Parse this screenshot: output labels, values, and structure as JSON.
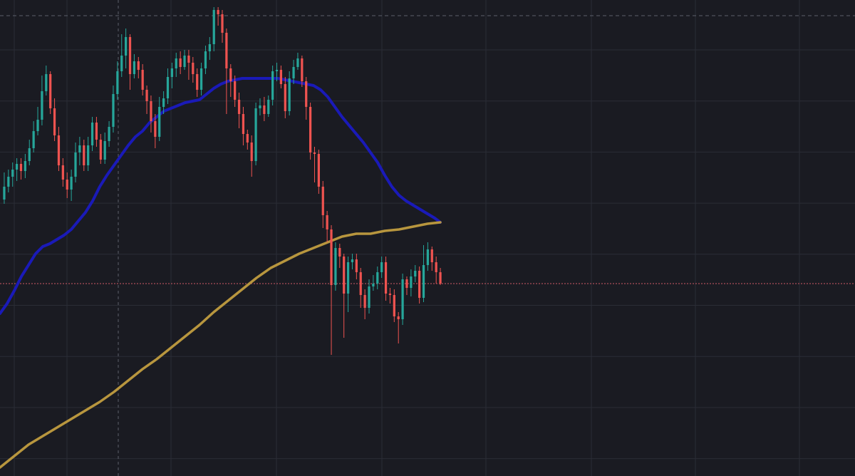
{
  "colors": {
    "background": "#1a1b22",
    "grid": "#2b2d36",
    "bull": "#26a69a",
    "bear": "#ef5350",
    "ma_fast": "#1a1ab8",
    "ma_slow": "#b8963e",
    "price_line": "#d05a66",
    "crosshair": "#5c5f6b",
    "high_line": "#5c5f6b"
  },
  "chart_data": {
    "type": "candlestick",
    "ylim": [
      0,
      668
    ],
    "x_count": 122,
    "candles": [
      [
        280,
        262,
        242,
        286
      ],
      [
        262,
        248,
        238,
        270
      ],
      [
        248,
        238,
        228,
        262
      ],
      [
        238,
        230,
        222,
        254
      ],
      [
        230,
        240,
        222,
        252
      ],
      [
        240,
        226,
        216,
        250
      ],
      [
        226,
        208,
        196,
        232
      ],
      [
        208,
        184,
        170,
        214
      ],
      [
        184,
        168,
        150,
        190
      ],
      [
        168,
        128,
        106,
        176
      ],
      [
        128,
        104,
        92,
        134
      ],
      [
        104,
        152,
        100,
        160
      ],
      [
        152,
        190,
        138,
        198
      ],
      [
        190,
        232,
        178,
        240
      ],
      [
        232,
        252,
        222,
        262
      ],
      [
        252,
        266,
        242,
        278
      ],
      [
        266,
        248,
        238,
        282
      ],
      [
        248,
        214,
        200,
        256
      ],
      [
        214,
        204,
        192,
        232
      ],
      [
        204,
        232,
        196,
        240
      ],
      [
        232,
        204,
        192,
        240
      ],
      [
        204,
        172,
        164,
        212
      ],
      [
        172,
        196,
        164,
        206
      ],
      [
        196,
        224,
        188,
        230
      ],
      [
        224,
        198,
        186,
        230
      ],
      [
        198,
        178,
        170,
        206
      ],
      [
        178,
        132,
        120,
        186
      ],
      [
        132,
        100,
        86,
        140
      ],
      [
        100,
        78,
        48,
        108
      ],
      [
        78,
        52,
        40,
        96
      ],
      [
        52,
        104,
        48,
        126
      ],
      [
        104,
        86,
        76,
        110
      ],
      [
        86,
        98,
        80,
        110
      ],
      [
        98,
        126,
        90,
        134
      ],
      [
        126,
        142,
        120,
        160
      ],
      [
        142,
        170,
        134,
        186
      ],
      [
        170,
        192,
        160,
        208
      ],
      [
        192,
        150,
        136,
        198
      ],
      [
        150,
        138,
        128,
        160
      ],
      [
        138,
        108,
        96,
        146
      ],
      [
        108,
        96,
        88,
        124
      ],
      [
        96,
        82,
        74,
        108
      ],
      [
        82,
        94,
        72,
        104
      ],
      [
        94,
        78,
        70,
        98
      ],
      [
        78,
        88,
        70,
        112
      ],
      [
        88,
        104,
        80,
        116
      ],
      [
        104,
        126,
        96,
        136
      ],
      [
        126,
        96,
        88,
        134
      ],
      [
        96,
        72,
        64,
        104
      ],
      [
        72,
        62,
        52,
        84
      ],
      [
        62,
        14,
        10,
        72
      ],
      [
        14,
        20,
        10,
        36
      ],
      [
        20,
        46,
        14,
        60
      ],
      [
        46,
        96,
        40,
        160
      ],
      [
        96,
        114,
        90,
        136
      ],
      [
        114,
        140,
        106,
        150
      ],
      [
        140,
        160,
        130,
        180
      ],
      [
        160,
        188,
        150,
        204
      ],
      [
        188,
        200,
        182,
        210
      ],
      [
        200,
        226,
        190,
        248
      ],
      [
        226,
        152,
        144,
        232
      ],
      [
        152,
        148,
        138,
        162
      ],
      [
        148,
        160,
        136,
        170
      ],
      [
        160,
        140,
        134,
        164
      ],
      [
        140,
        100,
        92,
        148
      ],
      [
        100,
        98,
        88,
        114
      ],
      [
        98,
        118,
        92,
        124
      ],
      [
        118,
        156,
        108,
        166
      ],
      [
        156,
        110,
        100,
        162
      ],
      [
        110,
        94,
        84,
        118
      ],
      [
        94,
        82,
        74,
        98
      ],
      [
        82,
        114,
        78,
        122
      ],
      [
        114,
        150,
        108,
        168
      ],
      [
        150,
        214,
        144,
        224
      ],
      [
        214,
        216,
        206,
        256
      ],
      [
        216,
        262,
        210,
        272
      ],
      [
        262,
        302,
        254,
        320
      ],
      [
        302,
        322,
        296,
        340
      ],
      [
        322,
        400,
        316,
        498
      ],
      [
        400,
        348,
        340,
        408
      ],
      [
        348,
        360,
        342,
        376
      ],
      [
        360,
        412,
        356,
        474
      ],
      [
        412,
        368,
        360,
        438
      ],
      [
        368,
        364,
        356,
        378
      ],
      [
        364,
        382,
        356,
        392
      ],
      [
        382,
        414,
        376,
        432
      ],
      [
        414,
        432,
        406,
        448
      ],
      [
        432,
        402,
        392,
        440
      ],
      [
        402,
        398,
        386,
        408
      ],
      [
        398,
        382,
        374,
        406
      ],
      [
        382,
        368,
        360,
        390
      ],
      [
        368,
        412,
        360,
        422
      ],
      [
        412,
        414,
        404,
        426
      ],
      [
        414,
        444,
        406,
        452
      ],
      [
        444,
        448,
        438,
        482
      ],
      [
        448,
        392,
        384,
        456
      ],
      [
        392,
        404,
        388,
        414
      ],
      [
        404,
        388,
        378,
        416
      ],
      [
        388,
        380,
        372,
        396
      ],
      [
        380,
        418,
        374,
        426
      ],
      [
        418,
        372,
        344,
        424
      ],
      [
        372,
        350,
        340,
        380
      ],
      [
        350,
        368,
        346,
        380
      ],
      [
        368,
        382,
        360,
        398
      ],
      [
        382,
        398,
        376,
        400
      ]
    ],
    "moving_averages": [
      {
        "x": [
          0,
          10,
          20,
          30,
          40,
          50,
          60,
          70,
          80,
          90,
          100,
          110,
          120,
          130,
          140,
          150,
          160,
          170,
          180,
          190,
          200,
          210,
          220,
          230,
          240,
          250,
          260,
          270,
          280,
          290,
          300,
          310,
          320,
          330,
          340,
          350,
          360,
          370,
          380,
          390,
          400,
          410,
          420,
          430,
          440,
          450,
          460,
          470,
          480,
          490,
          500,
          510,
          520,
          530,
          540,
          550,
          560,
          570,
          580,
          590,
          600,
          610,
          618
        ],
        "y": [
          440,
          426,
          408,
          388,
          372,
          356,
          346,
          342,
          336,
          330,
          322,
          310,
          298,
          282,
          262,
          246,
          232,
          218,
          204,
          192,
          184,
          172,
          164,
          156,
          152,
          148,
          144,
          142,
          140,
          132,
          124,
          118,
          114,
          112,
          110,
          110,
          110,
          110,
          110,
          110,
          112,
          114,
          116,
          118,
          120,
          126,
          136,
          150,
          164,
          176,
          188,
          200,
          214,
          228,
          246,
          262,
          274,
          282,
          288,
          294,
          300,
          306,
          312
        ]
      },
      {
        "x": [
          0,
          20,
          40,
          60,
          80,
          100,
          120,
          140,
          160,
          180,
          200,
          220,
          240,
          260,
          280,
          300,
          320,
          340,
          360,
          380,
          400,
          420,
          440,
          460,
          480,
          500,
          520,
          540,
          560,
          580,
          600,
          618
        ],
        "y": [
          656,
          640,
          624,
          612,
          600,
          588,
          576,
          564,
          550,
          534,
          518,
          504,
          488,
          472,
          456,
          438,
          422,
          406,
          390,
          376,
          366,
          356,
          348,
          340,
          332,
          328,
          328,
          324,
          322,
          318,
          314,
          312
        ]
      }
    ],
    "last_price_y": 398,
    "high_level_y": 22,
    "crosshair_x": 166
  }
}
